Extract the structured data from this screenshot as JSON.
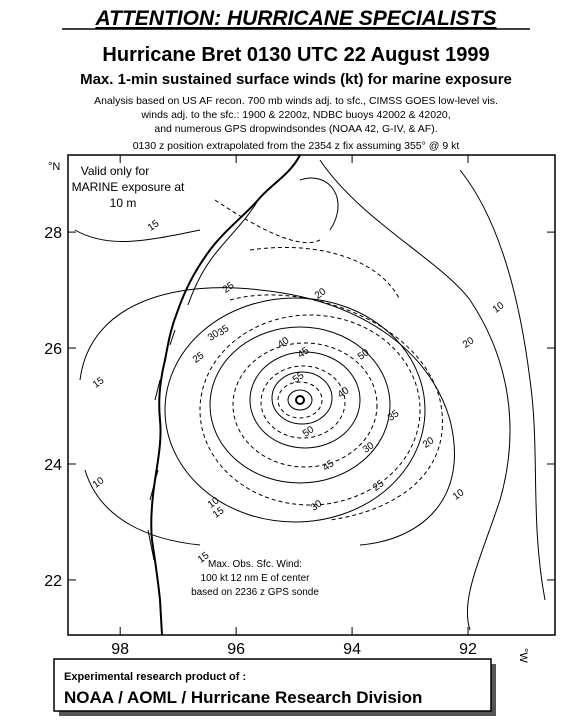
{
  "header": {
    "title": "ATTENTION: HURRICANE SPECIALISTS",
    "subtitle": "Hurricane Bret 0130 UTC 22 August 1999",
    "product": "Max. 1-min sustained surface winds (kt) for marine exposure",
    "notes": [
      "Analysis based on US AF recon. 700 mb winds adj. to sfc., CIMSS GOES low-level vis.",
      "winds adj. to the sfc.:  1900 & 2200z, NDBC buoys 42002 & 42020,",
      "and numerous GPS dropwindsondes (NOAA 42, G-IV, & AF).",
      "0130 z position extrapolated from the 2354 z fix assuming  355° @ 9 kt"
    ]
  },
  "map": {
    "lat_range": [
      21.05,
      29.33
    ],
    "lon_range": [
      98.9,
      90.5
    ],
    "lat_ticks": [
      28,
      26,
      24,
      22
    ],
    "lon_ticks": [
      98,
      96,
      94,
      92
    ],
    "lat_unit": "°N",
    "lon_unit": "°W",
    "valid_note": [
      "Valid only for",
      "MARINE exposure at",
      "10 m"
    ],
    "max_wind_note": [
      "Max. Obs. Sfc. Wind:",
      "100 kt  12 nm E of center",
      "based on  2236 z GPS sonde"
    ],
    "contour_labels": [
      "15",
      "15",
      "10",
      "20",
      "20",
      "35",
      "30",
      "25",
      "40",
      "45",
      "50",
      "55",
      "35",
      "30",
      "25",
      "20",
      "15",
      "10",
      "10",
      "45",
      "40",
      "50",
      "25",
      "30",
      "15",
      "10"
    ]
  },
  "footer": {
    "line1": "Experimental research product of :",
    "line2": "NOAA / AOML / Hurricane Research Division"
  }
}
